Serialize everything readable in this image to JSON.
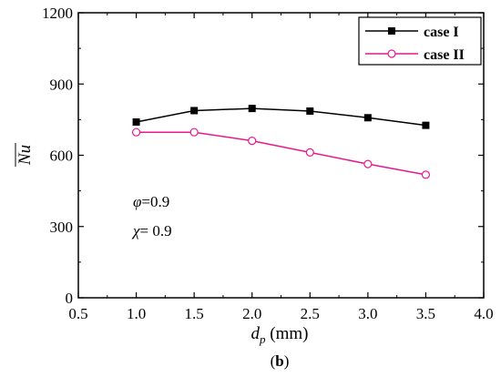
{
  "chart_data": {
    "type": "line",
    "xlabel_main": "d",
    "xlabel_sub": "p",
    "xlabel_unit": " (mm)",
    "ylabel": "Nu",
    "xlim": [
      0.5,
      4.0
    ],
    "ylim": [
      0,
      1200
    ],
    "xticks": [
      "0.5",
      "1.0",
      "1.5",
      "2.0",
      "2.5",
      "3.0",
      "3.5",
      "4.0"
    ],
    "yticks": [
      "0",
      "300",
      "600",
      "900",
      "1200"
    ],
    "x": [
      1.0,
      1.5,
      2.0,
      2.5,
      3.0,
      3.5
    ],
    "series": [
      {
        "name": "case I",
        "color": "#000000",
        "marker": "square-filled",
        "values": [
          740,
          788,
          797,
          786,
          758,
          726
        ]
      },
      {
        "name": "case II",
        "color": "#e8198c",
        "marker": "circle-open",
        "values": [
          697,
          697,
          661,
          612,
          563,
          518
        ]
      }
    ],
    "legend_position": "top-right",
    "grid": false,
    "annotations": {
      "phi_symbol": "φ",
      "phi_value": "=0.9",
      "chi_symbol": "χ",
      "chi_value": "= 0.9"
    },
    "caption_open": "(",
    "caption_letter": "b",
    "caption_close": ")"
  }
}
